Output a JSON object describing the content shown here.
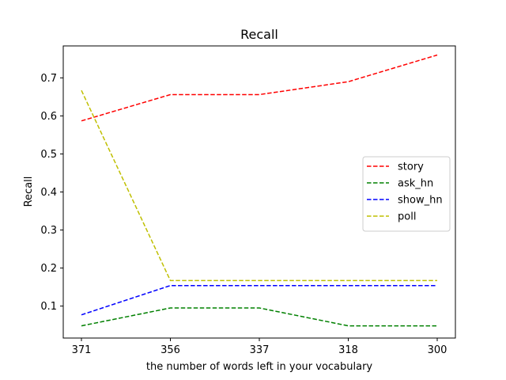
{
  "chart_data": {
    "type": "line",
    "title": "Recall",
    "xlabel": "the number of words left in your vocabulary",
    "ylabel": "Recall",
    "categories": [
      "371",
      "356",
      "337",
      "318",
      "300"
    ],
    "yticks": [
      "0.1",
      "0.2",
      "0.3",
      "0.4",
      "0.5",
      "0.6",
      "0.7"
    ],
    "ylim": [
      0.016,
      0.784
    ],
    "grid": false,
    "legend_position": "center-right",
    "line_style": "dashed",
    "series": [
      {
        "name": "story",
        "color": "#ff0000",
        "values": [
          0.587,
          0.656,
          0.656,
          0.69,
          0.76
        ]
      },
      {
        "name": "ask_hn",
        "color": "#008000",
        "values": [
          0.048,
          0.095,
          0.095,
          0.048,
          0.048
        ]
      },
      {
        "name": "show_hn",
        "color": "#0000ff",
        "values": [
          0.077,
          0.154,
          0.154,
          0.154,
          0.154
        ]
      },
      {
        "name": "poll",
        "color": "#bfbf00",
        "values": [
          0.667,
          0.167,
          0.167,
          0.167,
          0.167
        ]
      }
    ]
  }
}
